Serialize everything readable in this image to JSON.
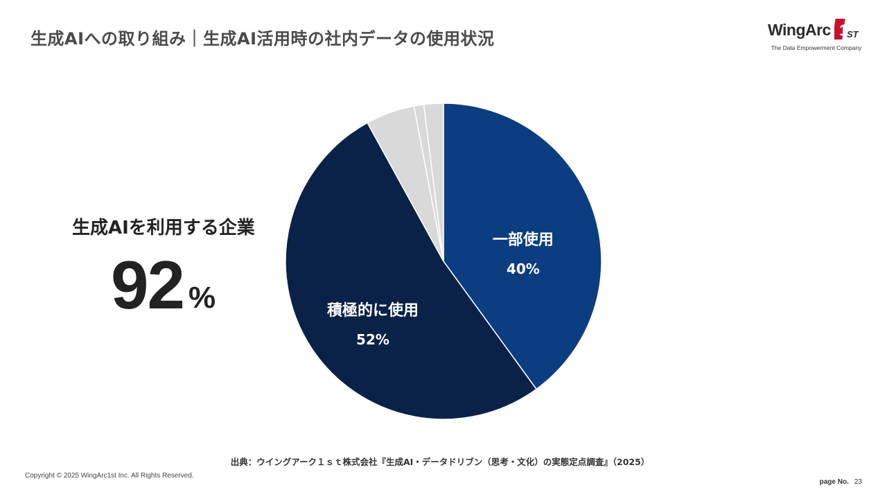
{
  "header": {
    "title": "生成AIへの取り組み｜生成AI活用時の社内データの使用状況",
    "logo_text": "WingArc",
    "logo_mark_digit": "1",
    "logo_mark_suffix": "ST",
    "logo_tagline": "The Data Empowerment Company"
  },
  "kpi": {
    "label": "生成AIを利用する企業",
    "value": "92",
    "unit": "%"
  },
  "chart_data": {
    "type": "pie",
    "start_angle_deg": 0,
    "direction": "clockwise",
    "slices": [
      {
        "label": "一部使用",
        "display_value": "40%",
        "value": 40,
        "color": "#0b3d80",
        "labeled": true
      },
      {
        "label": "積極的に使用",
        "display_value": "52%",
        "value": 52,
        "color": "#0a2248",
        "labeled": true
      },
      {
        "label": "",
        "display_value": "",
        "value": 5,
        "color": "#d9d9d9",
        "labeled": false
      },
      {
        "label": "",
        "display_value": "",
        "value": 1,
        "color": "#d9d9d9",
        "labeled": false
      },
      {
        "label": "",
        "display_value": "",
        "value": 2,
        "color": "#d9d9d9",
        "labeled": false
      }
    ]
  },
  "footer": {
    "source": "出典：ウイングアーク１ｓｔ株式会社『生成AI・データドリブン（思考・文化）の実態定点調査』（2025）",
    "copyright": "Copyright © 2025 WingArc1st Inc.  All Rights Reserved.",
    "page_label": "page No.",
    "page_number": "23"
  }
}
